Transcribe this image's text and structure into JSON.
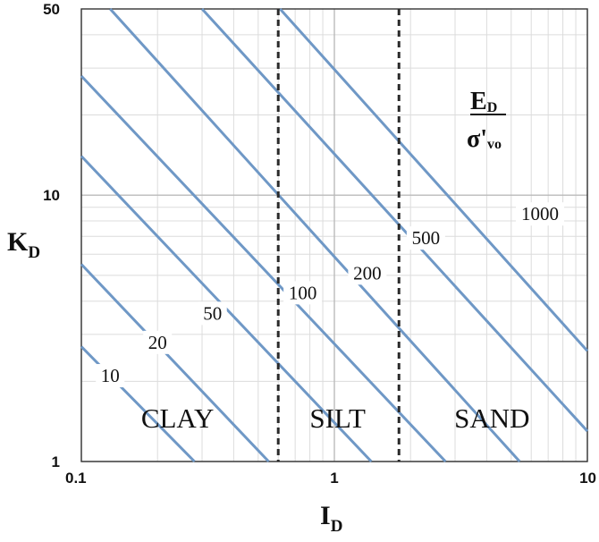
{
  "chart_data": {
    "type": "line",
    "title": "",
    "xlabel": {
      "main": "I",
      "sub": "D"
    },
    "ylabel": {
      "main": "K",
      "sub": "D"
    },
    "x_scale": "log",
    "y_scale": "log",
    "xlim": [
      0.1,
      10
    ],
    "ylim": [
      1,
      50
    ],
    "x_ticks": [
      {
        "value": 0.1,
        "label": "0.1"
      },
      {
        "value": 1,
        "label": "1"
      },
      {
        "value": 10,
        "label": "10"
      }
    ],
    "y_ticks": [
      {
        "value": 1,
        "label": "1"
      },
      {
        "value": 10,
        "label": "10"
      },
      {
        "value": 50,
        "label": "50"
      }
    ],
    "grid": true,
    "line_color": "#6f98c6",
    "boundary_color": "#2a2a2a",
    "legend_title": {
      "main": "E",
      "main_sub": "D",
      "denom": "σ'",
      "denom_sub": "vo"
    },
    "series": [
      {
        "name": "10",
        "label_at": {
          "x": 0.13,
          "y": 2.1
        },
        "points": [
          {
            "x": 0.1,
            "y": 2.7
          },
          {
            "x": 0.28,
            "y": 1
          }
        ]
      },
      {
        "name": "20",
        "label_at": {
          "x": 0.2,
          "y": 2.8
        },
        "points": [
          {
            "x": 0.1,
            "y": 5.5
          },
          {
            "x": 0.55,
            "y": 1
          }
        ]
      },
      {
        "name": "50",
        "label_at": {
          "x": 0.33,
          "y": 3.6
        },
        "points": [
          {
            "x": 0.1,
            "y": 14
          },
          {
            "x": 1.4,
            "y": 1
          }
        ]
      },
      {
        "name": "100",
        "label_at": {
          "x": 0.75,
          "y": 4.3
        },
        "points": [
          {
            "x": 0.1,
            "y": 28
          },
          {
            "x": 2.75,
            "y": 1
          }
        ]
      },
      {
        "name": "200",
        "label_at": {
          "x": 1.35,
          "y": 5.1
        },
        "points": [
          {
            "x": 0.13,
            "y": 50
          },
          {
            "x": 5.4,
            "y": 1
          }
        ]
      },
      {
        "name": "500",
        "label_at": {
          "x": 2.3,
          "y": 6.9
        },
        "points": [
          {
            "x": 0.3,
            "y": 50
          },
          {
            "x": 10,
            "y": 1.3
          }
        ]
      },
      {
        "name": "1000",
        "label_at": {
          "x": 6.5,
          "y": 8.5
        },
        "points": [
          {
            "x": 0.61,
            "y": 50
          },
          {
            "x": 10,
            "y": 2.6
          }
        ]
      }
    ],
    "boundaries": [
      {
        "x": 0.6,
        "style": "dashed"
      },
      {
        "x": 1.8,
        "style": "dashed"
      }
    ],
    "zones": [
      {
        "label": "CLAY",
        "x": 0.24,
        "y": 1.45
      },
      {
        "label": "SILT",
        "x": 1.03,
        "y": 1.45
      },
      {
        "label": "SAND",
        "x": 4.2,
        "y": 1.45
      }
    ]
  }
}
